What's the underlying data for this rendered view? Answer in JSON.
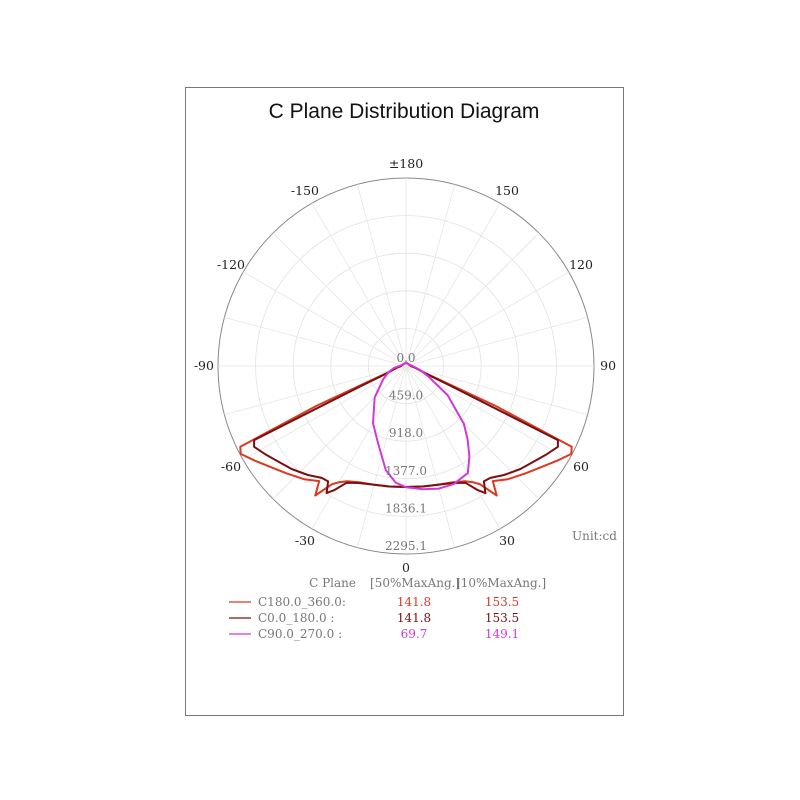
{
  "chart_data": {
    "type": "polar-line",
    "title": "C Plane Distribution Diagram",
    "unit_label": "Unit:cd",
    "angle_ticks": [
      {
        "value": 180,
        "label": "±180"
      },
      {
        "value": -150,
        "label": "-150"
      },
      {
        "value": 150,
        "label": "150"
      },
      {
        "value": -120,
        "label": "-120"
      },
      {
        "value": 120,
        "label": "120"
      },
      {
        "value": -90,
        "label": "-90"
      },
      {
        "value": 90,
        "label": "90"
      },
      {
        "value": -60,
        "label": "-60"
      },
      {
        "value": 60,
        "label": "60"
      },
      {
        "value": -30,
        "label": "-30"
      },
      {
        "value": 30,
        "label": "30"
      },
      {
        "value": 0,
        "label": "0"
      }
    ],
    "radial_ticks": [
      "0.0",
      "459.0",
      "918.0",
      "1377.0",
      "1836.1",
      "2295.1"
    ],
    "radial_range": [
      0,
      2295.1
    ],
    "grid": true,
    "series": [
      {
        "name": "C180.0_360.0:",
        "color": "#d83a22",
        "half_max_angle": "141.8",
        "tenth_max_angle": "153.5",
        "points": [
          [
            -180,
            40
          ],
          [
            -120,
            40
          ],
          [
            -90,
            60
          ],
          [
            -80,
            110
          ],
          [
            -75,
            150
          ],
          [
            -70,
            250
          ],
          [
            -66,
            1200
          ],
          [
            -64,
            2250
          ],
          [
            -62,
            2285
          ],
          [
            -58,
            2180
          ],
          [
            -54,
            2080
          ],
          [
            -48,
            1960
          ],
          [
            -42,
            1860
          ],
          [
            -37,
            1760
          ],
          [
            -35,
            1930
          ],
          [
            -32,
            1700
          ],
          [
            -30,
            1640
          ],
          [
            -27,
            1580
          ],
          [
            -22,
            1530
          ],
          [
            -15,
            1500
          ],
          [
            -8,
            1485
          ],
          [
            0,
            1477
          ],
          [
            8,
            1485
          ],
          [
            15,
            1500
          ],
          [
            22,
            1530
          ],
          [
            27,
            1580
          ],
          [
            30,
            1640
          ],
          [
            32,
            1700
          ],
          [
            35,
            1930
          ],
          [
            37,
            1760
          ],
          [
            42,
            1860
          ],
          [
            48,
            1960
          ],
          [
            54,
            2080
          ],
          [
            58,
            2180
          ],
          [
            62,
            2285
          ],
          [
            64,
            2250
          ],
          [
            66,
            1200
          ],
          [
            70,
            250
          ],
          [
            75,
            150
          ],
          [
            80,
            110
          ],
          [
            90,
            60
          ],
          [
            120,
            40
          ],
          [
            180,
            40
          ]
        ]
      },
      {
        "name": "C0.0_180.0  :",
        "color": "#7a1010",
        "half_max_angle": "141.8",
        "tenth_max_angle": "153.5",
        "points": [
          [
            -180,
            40
          ],
          [
            -120,
            40
          ],
          [
            -90,
            60
          ],
          [
            -80,
            110
          ],
          [
            -75,
            150
          ],
          [
            -70,
            220
          ],
          [
            -66,
            600
          ],
          [
            -64,
            2063
          ],
          [
            -62,
            2100
          ],
          [
            -58,
            2030
          ],
          [
            -54,
            1960
          ],
          [
            -48,
            1880
          ],
          [
            -42,
            1790
          ],
          [
            -37,
            1710
          ],
          [
            -34,
            1700
          ],
          [
            -32,
            1830
          ],
          [
            -30,
            1750
          ],
          [
            -27,
            1600
          ],
          [
            -22,
            1540
          ],
          [
            -15,
            1500
          ],
          [
            -8,
            1485
          ],
          [
            0,
            1477
          ],
          [
            8,
            1485
          ],
          [
            15,
            1500
          ],
          [
            22,
            1540
          ],
          [
            27,
            1600
          ],
          [
            30,
            1750
          ],
          [
            32,
            1830
          ],
          [
            34,
            1700
          ],
          [
            37,
            1710
          ],
          [
            42,
            1790
          ],
          [
            48,
            1880
          ],
          [
            54,
            1960
          ],
          [
            58,
            2030
          ],
          [
            62,
            2100
          ],
          [
            64,
            2063
          ],
          [
            66,
            600
          ],
          [
            70,
            220
          ],
          [
            75,
            150
          ],
          [
            80,
            110
          ],
          [
            90,
            60
          ],
          [
            120,
            40
          ],
          [
            180,
            40
          ]
        ]
      },
      {
        "name": "C90.0_270.0 :",
        "color": "#d23ad8",
        "half_max_angle": "69.7",
        "tenth_max_angle": "149.1",
        "points": [
          [
            -180,
            40
          ],
          [
            -120,
            40
          ],
          [
            -90,
            80
          ],
          [
            -80,
            150
          ],
          [
            -70,
            230
          ],
          [
            -60,
            320
          ],
          [
            -45,
            540
          ],
          [
            -30,
            805
          ],
          [
            -20,
            1000
          ],
          [
            -11,
            1295
          ],
          [
            -5,
            1430
          ],
          [
            0,
            1480
          ],
          [
            8,
            1520
          ],
          [
            15,
            1550
          ],
          [
            22,
            1555
          ],
          [
            30,
            1510
          ],
          [
            35,
            1350
          ],
          [
            40,
            1170
          ],
          [
            45,
            1000
          ],
          [
            55,
            620
          ],
          [
            65,
            300
          ],
          [
            75,
            170
          ],
          [
            90,
            80
          ],
          [
            120,
            40
          ],
          [
            180,
            40
          ]
        ]
      }
    ],
    "legend": {
      "header_plane": "C Plane",
      "header_50": "[50%MaxAng.]",
      "header_10": "[10%MaxAng.]"
    }
  }
}
